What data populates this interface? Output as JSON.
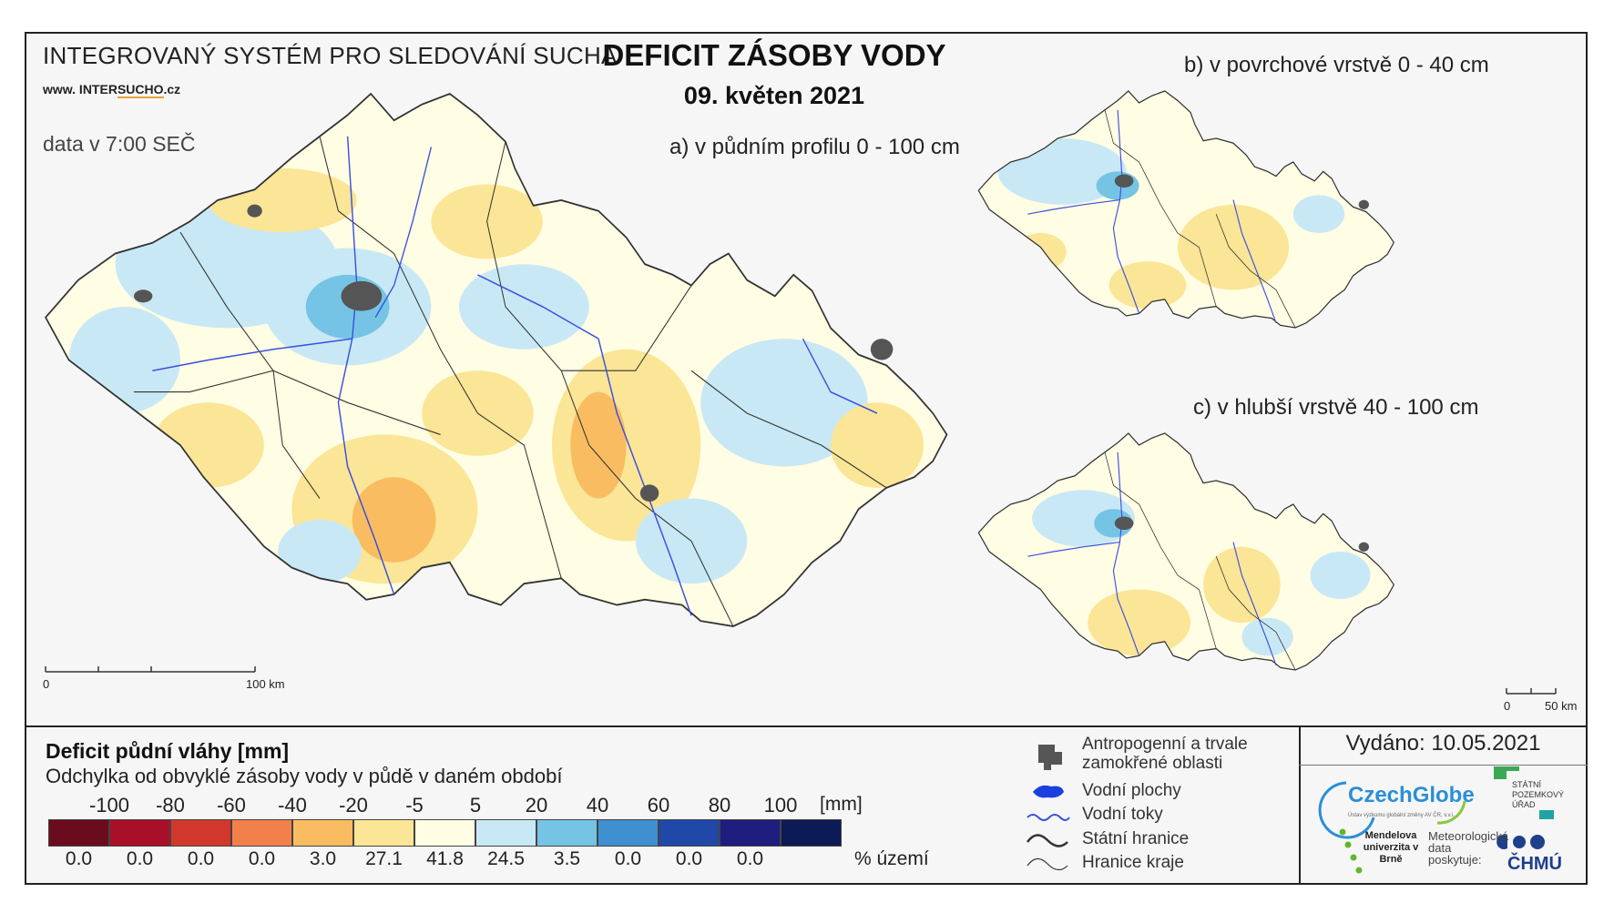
{
  "header": {
    "system_title": "INTEGROVANÝ SYSTÉM PRO SLEDOVÁNÍ SUCHA",
    "website_prefix": "www. INTER",
    "website_highlight": "SUCHO",
    "website_suffix": ".cz",
    "data_time": "data v 7:00 SEČ",
    "main_title": "DEFICIT ZÁSOBY VODY",
    "main_date": "09. květen 2021"
  },
  "maps": {
    "a": {
      "caption": "a) v půdním profilu 0 - 100 cm",
      "scale_zero": "0",
      "scale_end": "100 km"
    },
    "b": {
      "caption": "b) v povrchové vrstvě 0 - 40 cm"
    },
    "c": {
      "caption": "c) v hlubší vrstvě 40 - 100 cm",
      "scale_zero": "0",
      "scale_end": "50 km"
    }
  },
  "legend": {
    "title": "Deficit půdní vláhy  [mm]",
    "subtitle": "Odchylka od obvyklé zásoby vody v půdě v daném období",
    "ticks": [
      "-100",
      "-80",
      "-60",
      "-40",
      "-20",
      "-5",
      "5",
      "20",
      "40",
      "60",
      "80",
      "100"
    ],
    "unit": "[mm]",
    "colors": [
      "#6b0c1e",
      "#a8102a",
      "#d2372b",
      "#f2804a",
      "#f9bc61",
      "#fbe596",
      "#fffde3",
      "#c8e8f5",
      "#75c4e5",
      "#3f8fd1",
      "#2048a8",
      "#1f1d7e",
      "#0e1a55"
    ],
    "percentages": [
      "0.0",
      "0.0",
      "0.0",
      "0.0",
      "3.0",
      "27.1",
      "41.8",
      "24.5",
      "3.5",
      "0.0",
      "0.0",
      "0.0"
    ],
    "percent_label": "% území"
  },
  "symbols_legend": {
    "urban": "Antropogenní a trvale zamokřené oblasti",
    "water_bodies": "Vodní plochy",
    "rivers": "Vodní toky",
    "state_border": "Státní hranice",
    "region_border": "Hranice kraje"
  },
  "footer": {
    "issued": "Vydáno: 10.05.2021",
    "czechglobe": "CzechGlobe",
    "czechglobe_sub": "Ústav výzkumu globální změny AV ČR, v.v.i.",
    "spu": "STÁTNÍ POZEMKOVÝ ÚŘAD",
    "mendel": "Mendelova univerzita v Brně",
    "meteo": "Meteorologická data poskytuje:",
    "chmu": "ČHMÚ"
  }
}
